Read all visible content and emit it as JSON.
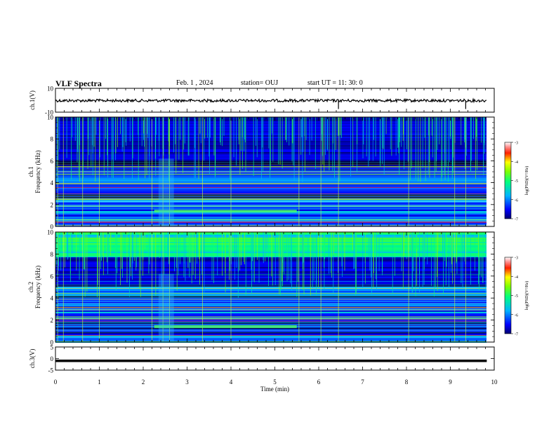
{
  "header": {
    "title": "VLF Spectra",
    "date": "Feb. 1 , 2024",
    "station": "station= OUJ",
    "start_ut": "start UT = 11: 30: 0"
  },
  "chart_data": [
    {
      "type": "line",
      "ylabel": "ch.1(V)",
      "ylim": [
        -10,
        10
      ],
      "yticks": [
        "10",
        "-10"
      ],
      "level": 0.0,
      "grid": false
    },
    {
      "type": "heatmap",
      "ylabel_line1": "ch.1",
      "ylabel_line2": "Frequency (kHz)",
      "ylim": [
        0,
        10
      ],
      "yticks": [
        "0",
        "2",
        "4",
        "6",
        "8",
        "10"
      ],
      "colorbar": {
        "label": "log(PSD)(V²/Hz)",
        "range": [
          -7,
          -3
        ],
        "ticks": [
          "-3",
          "-4",
          "-5",
          "-6",
          "-7"
        ]
      }
    },
    {
      "type": "heatmap",
      "ylabel_line1": "ch.2",
      "ylabel_line2": "Frequency (kHz)",
      "ylim": [
        0,
        10
      ],
      "yticks": [
        "0",
        "2",
        "4",
        "6",
        "8",
        "10"
      ],
      "colorbar": {
        "label": "log(PSD)(V²/Hz)",
        "range": [
          -7,
          -3
        ],
        "ticks": [
          "-3",
          "-4",
          "-5",
          "-6",
          "-7"
        ]
      }
    },
    {
      "type": "line",
      "ylabel": "ch.3(V)",
      "ylim": [
        -5,
        5
      ],
      "yticks": [
        "5",
        "0",
        "-5"
      ],
      "level": -1.0,
      "grid": false
    }
  ],
  "x_axis": {
    "label": "Time (min)",
    "range": [
      0,
      10
    ],
    "ticks": [
      "0",
      "1",
      "2",
      "3",
      "4",
      "5",
      "6",
      "7",
      "8",
      "9",
      "10"
    ]
  }
}
